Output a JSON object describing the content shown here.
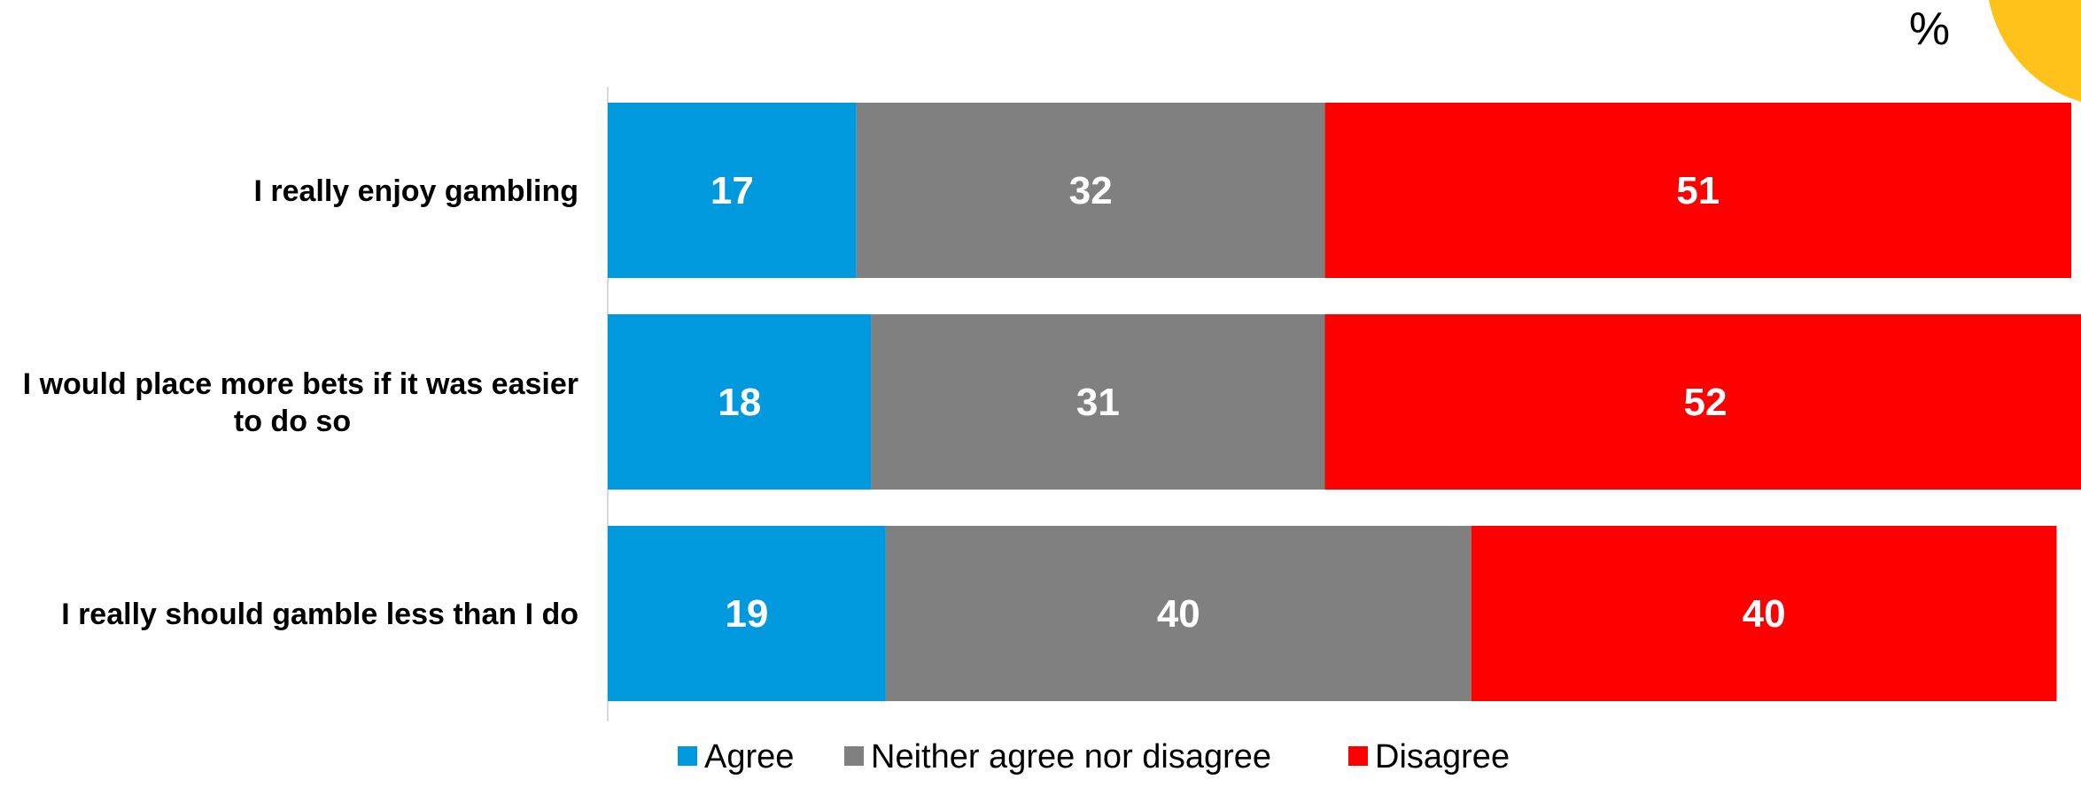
{
  "unit_label": "%",
  "colors": {
    "agree": "#0099dd",
    "neither": "#808080",
    "disagree": "#ff0000",
    "corner_accent": "#ffc21a"
  },
  "chart_data": {
    "type": "bar",
    "orientation": "horizontal",
    "stacked": true,
    "categories": [
      [
        "I really enjoy gambling"
      ],
      [
        "I would place more bets if it was easier",
        "to do so"
      ],
      [
        "I really should gamble less than I do"
      ]
    ],
    "series": [
      {
        "name": "Agree",
        "values": [
          17,
          18,
          19
        ],
        "color": "#0099dd"
      },
      {
        "name": "Neither agree nor disagree",
        "values": [
          32,
          31,
          40
        ],
        "color": "#808080"
      },
      {
        "name": "Disagree",
        "values": [
          51,
          52,
          40
        ],
        "color": "#ff0000"
      }
    ],
    "xlim": [
      0,
      100
    ],
    "grid": false,
    "legend_position": "bottom"
  }
}
